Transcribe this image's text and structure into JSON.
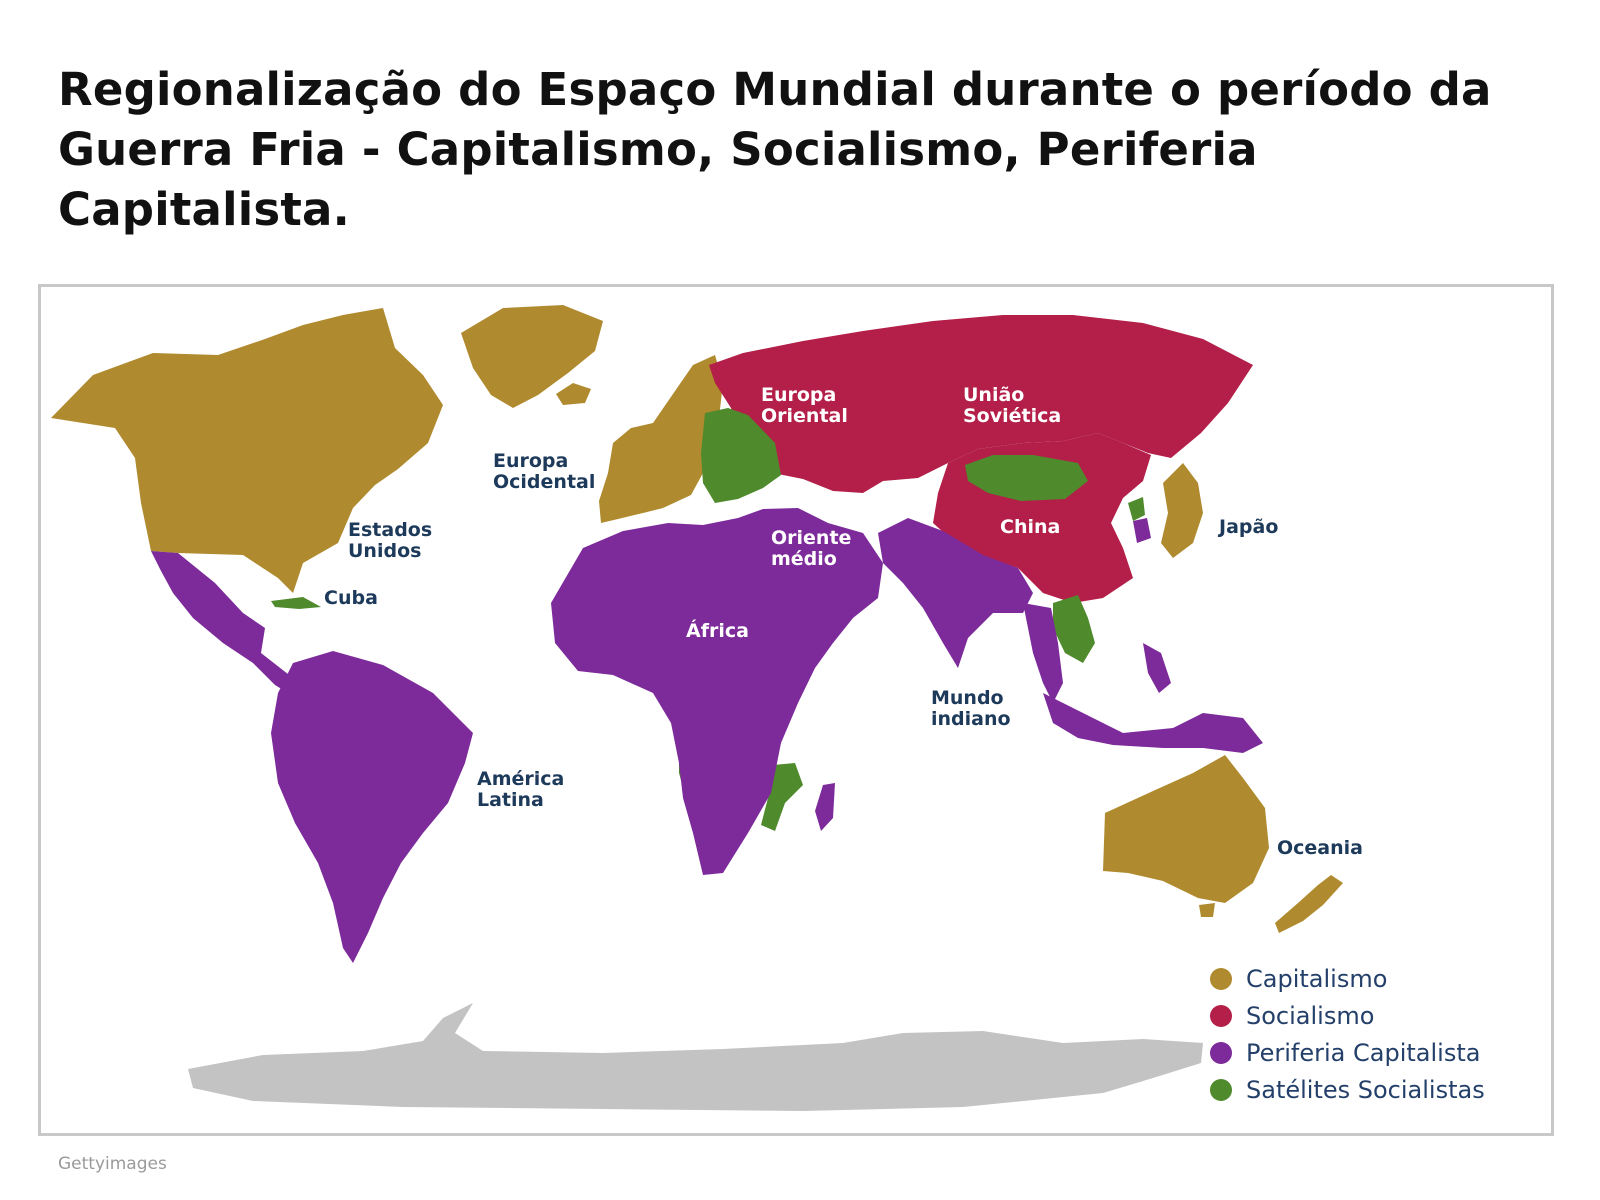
{
  "title": "Regionalização do Espaço Mundial durante o período da Guerra Fria - Capitalismo,  Socialismo, Periferia Capitalista.",
  "credit": "Gettyimages",
  "colors": {
    "capitalismo": "#b08a2e",
    "socialismo": "#b31f48",
    "periferia": "#7d2a9a",
    "satelites": "#4f8a2c",
    "antarctica": "#c3c3c3"
  },
  "map_labels": {
    "europa_oriental": [
      "Europa",
      "Oriental"
    ],
    "uniao_sovietica": [
      "União",
      "Soviética"
    ],
    "europa_ocidental": [
      "Europa",
      "Ocidental"
    ],
    "estados_unidos": [
      "Estados",
      "Unidos"
    ],
    "cuba": "Cuba",
    "china": "China",
    "japao": "Japão",
    "oriente_medio": [
      "Oriente",
      "médio"
    ],
    "africa": "África",
    "mundo_indiano": [
      "Mundo",
      "indiano"
    ],
    "america_latina": [
      "América",
      "Latina"
    ],
    "oceania": "Oceania"
  },
  "legend": [
    {
      "label": "Capitalismo",
      "color": "#b08a2e"
    },
    {
      "label": "Socialismo",
      "color": "#b31f48"
    },
    {
      "label": "Periferia Capitalista",
      "color": "#7d2a9a"
    },
    {
      "label": "Satélites Socialistas",
      "color": "#4f8a2c"
    }
  ]
}
